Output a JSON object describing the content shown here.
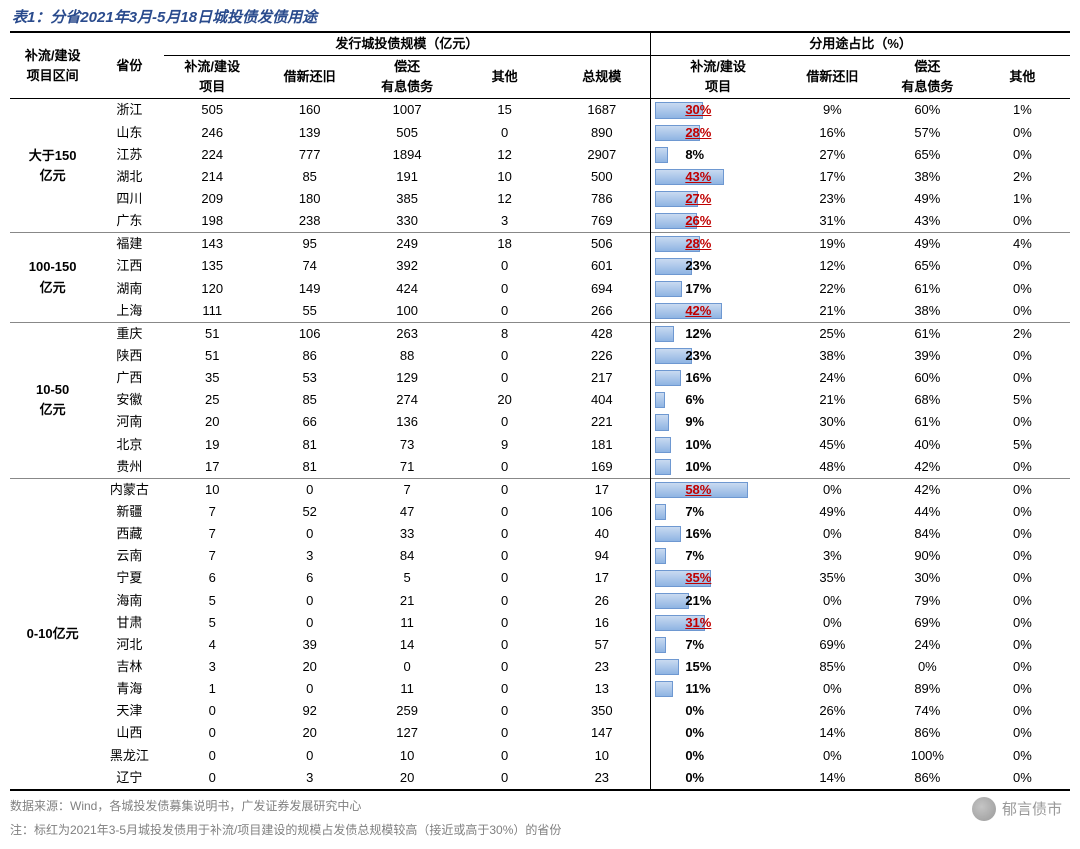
{
  "title": "表1：分省2021年3月-5月18日城投债发债用途",
  "header": {
    "groupCol": "补流/建设\n项目区间",
    "provCol": "省份",
    "scaleGroup": "发行城投债规模（亿元）",
    "pctGroup": "分用途占比（%）",
    "scaleCols": [
      "补流/建设\n项目",
      "借新还旧",
      "偿还\n有息债务",
      "其他",
      "总规模"
    ],
    "pctCols": [
      "补流/建设\n项目",
      "借新还旧",
      "偿还\n有息债务",
      "其他"
    ]
  },
  "style": {
    "titleColor": "#2a4b8d",
    "redColor": "#c00000",
    "barFillTop": "#c9daf1",
    "barFillBottom": "#8fb4e3",
    "barBorder": "#6e98d1",
    "barMaxPct": 60,
    "barMaxWidthPx": 96
  },
  "groups": [
    {
      "label": "大于150\n亿元",
      "rows": [
        {
          "prov": "浙江",
          "v": [
            505,
            160,
            1007,
            15,
            1687
          ],
          "p": [
            30,
            9,
            60,
            1
          ],
          "hi": true
        },
        {
          "prov": "山东",
          "v": [
            246,
            139,
            505,
            0,
            890
          ],
          "p": [
            28,
            16,
            57,
            0
          ],
          "hi": true
        },
        {
          "prov": "江苏",
          "v": [
            224,
            777,
            1894,
            12,
            2907
          ],
          "p": [
            8,
            27,
            65,
            0
          ],
          "hi": false
        },
        {
          "prov": "湖北",
          "v": [
            214,
            85,
            191,
            10,
            500
          ],
          "p": [
            43,
            17,
            38,
            2
          ],
          "hi": true
        },
        {
          "prov": "四川",
          "v": [
            209,
            180,
            385,
            12,
            786
          ],
          "p": [
            27,
            23,
            49,
            1
          ],
          "hi": true
        },
        {
          "prov": "广东",
          "v": [
            198,
            238,
            330,
            3,
            769
          ],
          "p": [
            26,
            31,
            43,
            0
          ],
          "hi": true
        }
      ]
    },
    {
      "label": "100-150\n亿元",
      "rows": [
        {
          "prov": "福建",
          "v": [
            143,
            95,
            249,
            18,
            506
          ],
          "p": [
            28,
            19,
            49,
            4
          ],
          "hi": true
        },
        {
          "prov": "江西",
          "v": [
            135,
            74,
            392,
            0,
            601
          ],
          "p": [
            23,
            12,
            65,
            0
          ],
          "hi": false
        },
        {
          "prov": "湖南",
          "v": [
            120,
            149,
            424,
            0,
            694
          ],
          "p": [
            17,
            22,
            61,
            0
          ],
          "hi": false
        },
        {
          "prov": "上海",
          "v": [
            111,
            55,
            100,
            0,
            266
          ],
          "p": [
            42,
            21,
            38,
            0
          ],
          "hi": true
        }
      ]
    },
    {
      "label": "10-50\n亿元",
      "rows": [
        {
          "prov": "重庆",
          "v": [
            51,
            106,
            263,
            8,
            428
          ],
          "p": [
            12,
            25,
            61,
            2
          ],
          "hi": false
        },
        {
          "prov": "陕西",
          "v": [
            51,
            86,
            88,
            0,
            226
          ],
          "p": [
            23,
            38,
            39,
            0
          ],
          "hi": false
        },
        {
          "prov": "广西",
          "v": [
            35,
            53,
            129,
            0,
            217
          ],
          "p": [
            16,
            24,
            60,
            0
          ],
          "hi": false
        },
        {
          "prov": "安徽",
          "v": [
            25,
            85,
            274,
            20,
            404
          ],
          "p": [
            6,
            21,
            68,
            5
          ],
          "hi": false
        },
        {
          "prov": "河南",
          "v": [
            20,
            66,
            136,
            0,
            221
          ],
          "p": [
            9,
            30,
            61,
            0
          ],
          "hi": false
        },
        {
          "prov": "北京",
          "v": [
            19,
            81,
            73,
            9,
            181
          ],
          "p": [
            10,
            45,
            40,
            5
          ],
          "hi": false
        },
        {
          "prov": "贵州",
          "v": [
            17,
            81,
            71,
            0,
            169
          ],
          "p": [
            10,
            48,
            42,
            0
          ],
          "hi": false
        }
      ]
    },
    {
      "label": "0-10亿元",
      "rows": [
        {
          "prov": "内蒙古",
          "v": [
            10,
            0,
            7,
            0,
            17
          ],
          "p": [
            58,
            0,
            42,
            0
          ],
          "hi": true
        },
        {
          "prov": "新疆",
          "v": [
            7,
            52,
            47,
            0,
            106
          ],
          "p": [
            7,
            49,
            44,
            0
          ],
          "hi": false
        },
        {
          "prov": "西藏",
          "v": [
            7,
            0,
            33,
            0,
            40
          ],
          "p": [
            16,
            0,
            84,
            0
          ],
          "hi": false
        },
        {
          "prov": "云南",
          "v": [
            7,
            3,
            84,
            0,
            94
          ],
          "p": [
            7,
            3,
            90,
            0
          ],
          "hi": false
        },
        {
          "prov": "宁夏",
          "v": [
            6,
            6,
            5,
            0,
            17
          ],
          "p": [
            35,
            35,
            30,
            0
          ],
          "hi": true
        },
        {
          "prov": "海南",
          "v": [
            5,
            0,
            21,
            0,
            26
          ],
          "p": [
            21,
            0,
            79,
            0
          ],
          "hi": false
        },
        {
          "prov": "甘肃",
          "v": [
            5,
            0,
            11,
            0,
            16
          ],
          "p": [
            31,
            0,
            69,
            0
          ],
          "hi": true
        },
        {
          "prov": "河北",
          "v": [
            4,
            39,
            14,
            0,
            57
          ],
          "p": [
            7,
            69,
            24,
            0
          ],
          "hi": false
        },
        {
          "prov": "吉林",
          "v": [
            3,
            20,
            0,
            0,
            23
          ],
          "p": [
            15,
            85,
            0,
            0
          ],
          "hi": false
        },
        {
          "prov": "青海",
          "v": [
            1,
            0,
            11,
            0,
            13
          ],
          "p": [
            11,
            0,
            89,
            0
          ],
          "hi": false
        },
        {
          "prov": "天津",
          "v": [
            0,
            92,
            259,
            0,
            350
          ],
          "p": [
            0,
            26,
            74,
            0
          ],
          "hi": false
        },
        {
          "prov": "山西",
          "v": [
            0,
            20,
            127,
            0,
            147
          ],
          "p": [
            0,
            14,
            86,
            0
          ],
          "hi": false
        },
        {
          "prov": "黑龙江",
          "v": [
            0,
            0,
            10,
            0,
            10
          ],
          "p": [
            0,
            0,
            100,
            0
          ],
          "hi": false
        },
        {
          "prov": "辽宁",
          "v": [
            0,
            3,
            20,
            0,
            23
          ],
          "p": [
            0,
            14,
            86,
            0
          ],
          "hi": false
        }
      ]
    }
  ],
  "footnotes": [
    "数据来源：Wind，各城投发债募集说明书，广发证券发展研究中心",
    "注：标红为2021年3-5月城投发债用于补流/项目建设的规模占发债总规模较高（接近或高于30%）的省份"
  ],
  "watermark": "郁言债市"
}
